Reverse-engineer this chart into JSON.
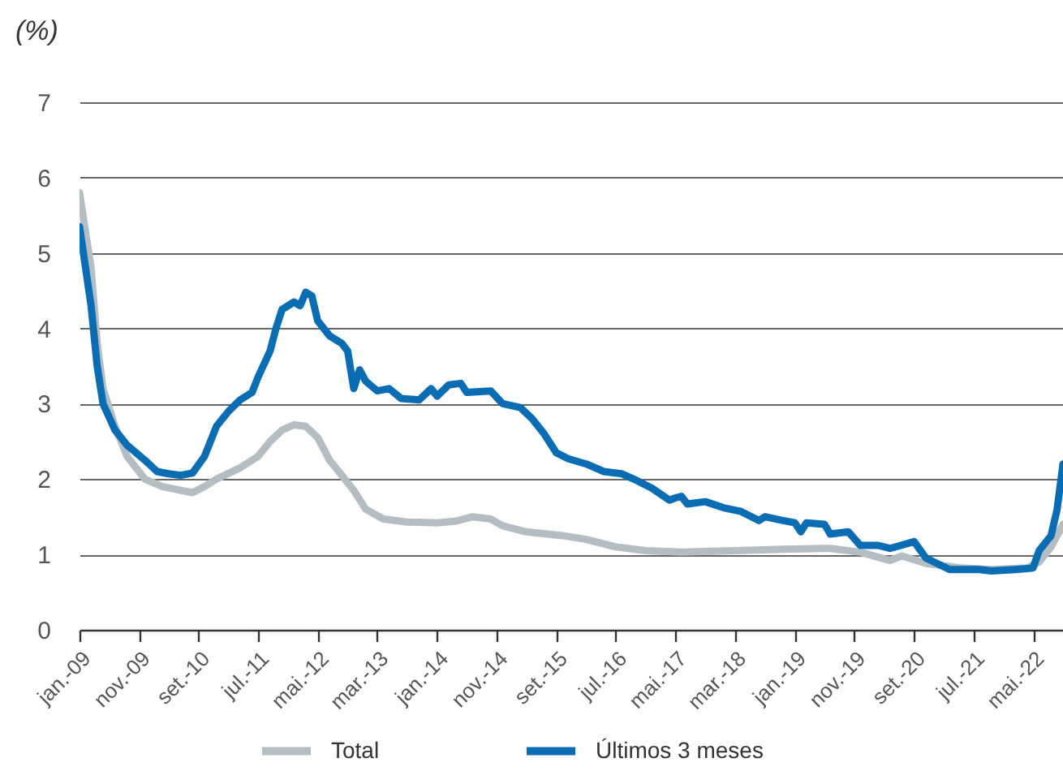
{
  "chart_data": {
    "type": "line",
    "ylabel": "(%)",
    "x": [
      "2009-01",
      "2009-03",
      "2009-04",
      "2009-05",
      "2009-07",
      "2009-09",
      "2009-12",
      "2010-03",
      "2010-06",
      "2010-08",
      "2010-10",
      "2010-12",
      "2011-04",
      "2011-07",
      "2011-09",
      "2011-11",
      "2012-01",
      "2012-03",
      "2012-05",
      "2012-07",
      "2012-09",
      "2012-11",
      "2013-01",
      "2013-04",
      "2013-08",
      "2014-01",
      "2014-04",
      "2014-07",
      "2014-10",
      "2014-12",
      "2015-04",
      "2015-10",
      "2016-02",
      "2016-07",
      "2016-12",
      "2017-06",
      "2018-03",
      "2018-11",
      "2019-07",
      "2019-12",
      "2020-05",
      "2020-07",
      "2020-11",
      "2021-05",
      "2021-10",
      "2022-04",
      "2022-06",
      "2022-08",
      "2022-10"
    ],
    "series": [
      {
        "name": "Total",
        "color": "#b4bec2",
        "values": [
          5.8,
          4.8,
          3.8,
          3.2,
          2.7,
          2.3,
          2.0,
          1.9,
          1.85,
          1.82,
          1.9,
          2.0,
          2.15,
          2.3,
          2.5,
          2.65,
          2.72,
          2.7,
          2.55,
          2.25,
          2.05,
          1.85,
          1.6,
          1.47,
          1.43,
          1.42,
          1.44,
          1.5,
          1.47,
          1.38,
          1.3,
          1.25,
          1.2,
          1.1,
          1.05,
          1.03,
          1.05,
          1.07,
          1.08,
          1.03,
          0.92,
          0.98,
          0.88,
          0.82,
          0.8,
          0.82,
          0.9,
          1.1,
          1.4
        ]
      },
      {
        "name": "Últimos 3 meses",
        "color": "#0a6db3",
        "x": [
          "2009-01",
          "2009-03",
          "2009-04",
          "2009-05",
          "2009-07",
          "2009-09",
          "2009-12",
          "2010-02",
          "2010-04",
          "2010-06",
          "2010-08",
          "2010-10",
          "2010-12",
          "2011-02",
          "2011-04",
          "2011-06",
          "2011-07",
          "2011-09",
          "2011-10",
          "2011-11",
          "2012-01",
          "2012-02",
          "2012-03",
          "2012-04",
          "2012-05",
          "2012-07",
          "2012-09",
          "2012-10",
          "2012-11",
          "2012-12",
          "2013-01",
          "2013-03",
          "2013-05",
          "2013-07",
          "2013-10",
          "2013-12",
          "2014-01",
          "2014-03",
          "2014-05",
          "2014-06",
          "2014-10",
          "2014-12",
          "2015-03",
          "2015-05",
          "2015-07",
          "2015-09",
          "2015-11",
          "2016-02",
          "2016-05",
          "2016-08",
          "2016-10",
          "2017-01",
          "2017-04",
          "2017-05",
          "2017-06",
          "2017-07",
          "2017-10",
          "2018-01",
          "2018-04",
          "2018-07",
          "2018-08",
          "2018-11",
          "2019-01",
          "2019-02",
          "2019-03",
          "2019-06",
          "2019-07",
          "2019-10",
          "2019-12",
          "2020-03",
          "2020-05",
          "2020-09",
          "2020-11",
          "2021-03",
          "2021-08",
          "2021-10",
          "2022-02",
          "2022-05",
          "2022-06",
          "2022-08",
          "2022-09",
          "2022-10"
        ],
        "values": [
          5.35,
          4.3,
          3.5,
          3.0,
          2.65,
          2.45,
          2.25,
          2.1,
          2.07,
          2.05,
          2.08,
          2.3,
          2.7,
          2.9,
          3.05,
          3.15,
          3.35,
          3.7,
          4.0,
          4.25,
          4.35,
          4.3,
          4.48,
          4.43,
          4.1,
          3.9,
          3.8,
          3.7,
          3.2,
          3.45,
          3.3,
          3.17,
          3.2,
          3.07,
          3.05,
          3.2,
          3.1,
          3.25,
          3.27,
          3.15,
          3.17,
          3.0,
          2.95,
          2.8,
          2.6,
          2.35,
          2.27,
          2.2,
          2.1,
          2.07,
          2.0,
          1.88,
          1.72,
          1.75,
          1.77,
          1.67,
          1.7,
          1.62,
          1.57,
          1.45,
          1.5,
          1.45,
          1.42,
          1.3,
          1.42,
          1.4,
          1.27,
          1.3,
          1.12,
          1.12,
          1.08,
          1.17,
          0.95,
          0.8,
          0.8,
          0.78,
          0.8,
          0.82,
          1.05,
          1.25,
          1.6,
          2.2
        ]
      }
    ],
    "xlim": [
      "2009-01",
      "2022-10"
    ],
    "xticks": [
      {
        "value": "2009-01",
        "label": "jan.-09"
      },
      {
        "value": "2009-11",
        "label": "nov.-09"
      },
      {
        "value": "2010-09",
        "label": "set.-10"
      },
      {
        "value": "2011-07",
        "label": "jul.-11"
      },
      {
        "value": "2012-05",
        "label": "mai.-12"
      },
      {
        "value": "2013-03",
        "label": "mar.-13"
      },
      {
        "value": "2014-01",
        "label": "jan.-14"
      },
      {
        "value": "2014-11",
        "label": "nov.-14"
      },
      {
        "value": "2015-09",
        "label": "set.-15"
      },
      {
        "value": "2016-07",
        "label": "jul.-16"
      },
      {
        "value": "2017-05",
        "label": "mai.-17"
      },
      {
        "value": "2018-03",
        "label": "mar.-18"
      },
      {
        "value": "2019-01",
        "label": "jan.-19"
      },
      {
        "value": "2019-11",
        "label": "nov.-19"
      },
      {
        "value": "2020-09",
        "label": "set.-20"
      },
      {
        "value": "2021-07",
        "label": "jul.-21"
      },
      {
        "value": "2022-05",
        "label": "mai.-22"
      }
    ],
    "ylim": [
      0,
      7
    ],
    "yticks": [
      0,
      1,
      2,
      3,
      4,
      5,
      6,
      7
    ],
    "grid": "y",
    "legend": "bottom",
    "line_style": "solid",
    "marker": "none"
  }
}
